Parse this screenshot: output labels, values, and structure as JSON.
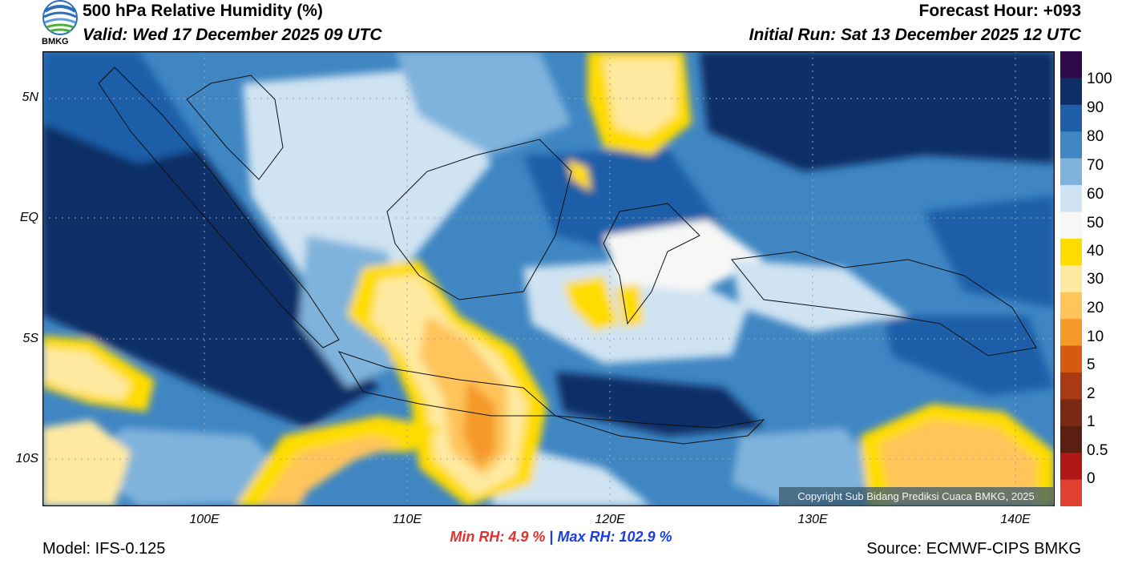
{
  "header": {
    "title": "500 hPa Relative Humidity (%)",
    "valid": "Valid: Wed 17 December 2025 09 UTC",
    "forecast_hour": "Forecast Hour: +093",
    "initial_run": "Initial Run: Sat 13 December 2025 12 UTC",
    "logo_text": "BMKG"
  },
  "map": {
    "lat_labels": [
      "5N",
      "EQ",
      "5S",
      "10S"
    ],
    "lon_labels": [
      "100E",
      "110E",
      "120E",
      "130E",
      "140E"
    ],
    "copyright": "Copyright Sub Bidang Prediksi Cuaca BMKG, 2025"
  },
  "colorbar": {
    "labels": [
      "100",
      "90",
      "80",
      "70",
      "60",
      "50",
      "40",
      "30",
      "20",
      "10",
      "5",
      "2",
      "1",
      "0.5",
      "0"
    ],
    "colors": [
      "#2e0a4a",
      "#0d2f66",
      "#1f5fa8",
      "#3f86c3",
      "#7fb3dc",
      "#cfe3f2",
      "#f7f8f6",
      "#ffdc00",
      "#ffe9a0",
      "#ffc45a",
      "#f59a2a",
      "#d65a10",
      "#a83b14",
      "#7a2a14",
      "#5a1f10",
      "#b01818",
      "#e04030"
    ]
  },
  "stats": {
    "min_label": "Min RH:",
    "min_value": "4.9 %",
    "separator": "|",
    "max_label": "Max RH:",
    "max_value": "102.9 %"
  },
  "footer": {
    "model": "Model: IFS-0.125",
    "source": "Source: ECMWF-CIPS BMKG"
  }
}
